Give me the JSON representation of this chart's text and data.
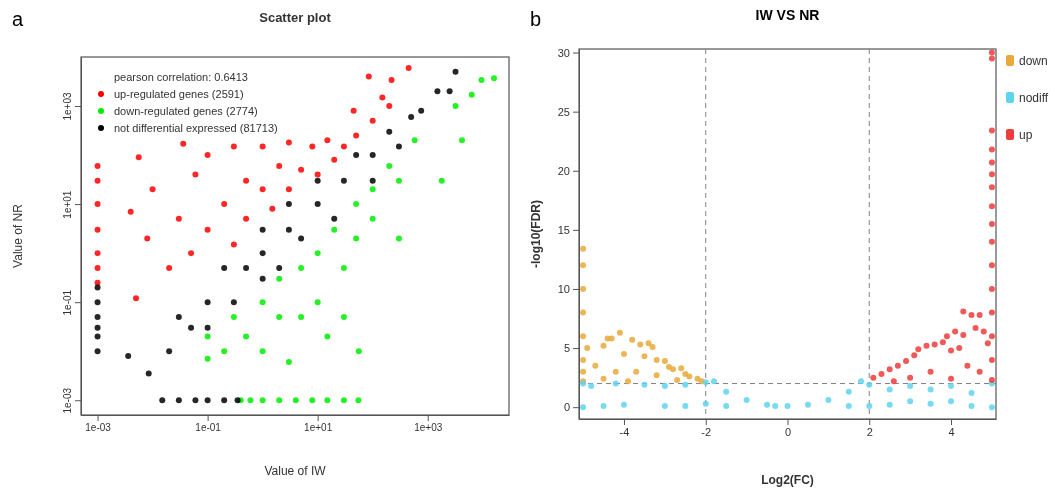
{
  "chart_data": [
    {
      "type": "scatter",
      "title": "Scatter plot",
      "xlabel": "Value of IW",
      "ylabel": "Value of NR",
      "annotations": [
        "a",
        "pearson correlation: 0.6413"
      ],
      "log": "xy",
      "xlim": [
        0.0005,
        30000
      ],
      "ylim": [
        0.0005,
        10000
      ],
      "xticks": [
        {
          "value": 0.001,
          "label": "1e-03"
        },
        {
          "value": 0.1,
          "label": "1e-01"
        },
        {
          "value": 10,
          "label": "1e+01"
        },
        {
          "value": 1000,
          "label": "1e+03"
        }
      ],
      "yticks": [
        {
          "value": 0.001,
          "label": "1e-03"
        },
        {
          "value": 0.1,
          "label": "1e-01"
        },
        {
          "value": 10,
          "label": "1e+01"
        },
        {
          "value": 1000,
          "label": "1e+03"
        }
      ],
      "grid": false,
      "legend": "top left",
      "marker": "circle",
      "series": [
        {
          "name": "up-regulated genes (2591)",
          "color": "#ff0000",
          "x": [
            0.001,
            0.001,
            0.001,
            0.001,
            0.001,
            0.001,
            0.001,
            0.004,
            0.0056,
            0.005,
            0.008,
            0.01,
            0.02,
            0.036,
            0.03,
            0.05,
            0.06,
            0.1,
            0.1,
            0.2,
            0.3,
            0.3,
            0.5,
            0.5,
            1,
            1,
            1.5,
            2,
            3,
            3,
            5,
            8,
            10,
            15,
            20,
            30,
            45,
            50,
            85,
            100,
            150,
            220,
            200,
            450
          ],
          "values": [
            60,
            30,
            10,
            3,
            1,
            0.5,
            0.25,
            7,
            90,
            0.12,
            2,
            20,
            0.5,
            170,
            5,
            1,
            40,
            3,
            100,
            10,
            1.5,
            150,
            30,
            5,
            150,
            20,
            8,
            60,
            180,
            20,
            50,
            150,
            40,
            200,
            80,
            150,
            800,
            250,
            4000,
            500,
            1500,
            3400,
            1000,
            6000
          ]
        },
        {
          "name": "down-regulated genes (2774)",
          "color": "#00ee00",
          "x": [
            0.4,
            0.6,
            1,
            2,
            4,
            8,
            15,
            30,
            55,
            0.1,
            0.1,
            0.2,
            0.3,
            0.5,
            1,
            1,
            2,
            2,
            3,
            5,
            5,
            10,
            10,
            15,
            20,
            30,
            30,
            50,
            50,
            56,
            100,
            100,
            200,
            300,
            300,
            580,
            1800,
            3200,
            4200,
            6300,
            9500,
            16000
          ],
          "values": [
            0.001,
            0.001,
            0.001,
            0.001,
            0.001,
            0.001,
            0.001,
            0.001,
            0.001,
            0.007,
            0.02,
            0.01,
            0.05,
            0.02,
            0.01,
            0.1,
            0.05,
            0.3,
            0.006,
            0.5,
            0.05,
            0.1,
            1,
            0.02,
            3,
            0.5,
            0.05,
            2,
            10,
            0.01,
            20,
            5,
            60,
            30,
            2,
            200,
            30,
            1000,
            200,
            1700,
            3400,
            3700
          ]
        },
        {
          "name": "not differential expressed (81713)",
          "color": "#000000",
          "x": [
            0.001,
            0.001,
            0.001,
            0.001,
            0.001,
            0.001,
            0.015,
            0.03,
            0.06,
            0.1,
            0.2,
            0.35,
            0.0036,
            0.0085,
            0.02,
            0.03,
            0.05,
            0.1,
            0.1,
            0.2,
            0.3,
            0.5,
            1,
            1,
            1,
            2,
            3,
            3,
            5,
            10,
            10,
            20,
            30,
            50,
            100,
            100,
            200,
            300,
            500,
            760,
            1500,
            2500,
            3200
          ],
          "values": [
            0.2,
            0.1,
            0.05,
            0.03,
            0.02,
            0.01,
            0.001,
            0.001,
            0.001,
            0.001,
            0.001,
            0.001,
            0.008,
            0.0035,
            0.01,
            0.05,
            0.03,
            0.1,
            0.03,
            0.5,
            0.1,
            0.5,
            1,
            3,
            0.3,
            0.5,
            3,
            10,
            2,
            10,
            30,
            5,
            30,
            100,
            100,
            30,
            300,
            150,
            600,
            800,
            2000,
            2000,
            5000
          ]
        }
      ]
    },
    {
      "type": "scatter",
      "title": "IW VS NR",
      "xlabel": "Log2(FC)",
      "ylabel": "-log10(FDR)",
      "annotations": [
        "b"
      ],
      "xlim": [
        -5.1,
        5.1
      ],
      "ylim": [
        -1,
        30.3
      ],
      "xticks": [
        -4,
        -2,
        0,
        2,
        4
      ],
      "yticks": [
        0,
        5,
        10,
        15,
        20,
        25,
        30
      ],
      "grid": false,
      "legend": "right",
      "marker": "circle",
      "ref_lines": [
        {
          "axis": "x",
          "value": -2,
          "line_style": "dashed",
          "color": "#808080"
        },
        {
          "axis": "x",
          "value": 2,
          "line_style": "dashed",
          "color": "#808080"
        },
        {
          "axis": "y",
          "value": 2,
          "line_style": "dashed",
          "color": "#808080"
        }
      ],
      "series": [
        {
          "name": "down",
          "color": "#e8a93a",
          "x": [
            -5,
            -5,
            -5,
            -5,
            -5,
            -5,
            -5,
            -5,
            -4.9,
            -4.5,
            -4.4,
            -4.3,
            -4.1,
            -3.8,
            -3.6,
            -3.4,
            -3.3,
            -4,
            -3.5,
            -3.2,
            -3,
            -2.9,
            -2.8,
            -2.6,
            -2.5,
            -2.4,
            -2.2,
            -2.1,
            -4.7,
            -4.2,
            -3.7,
            -3.2,
            -2.7,
            -4.5,
            -3.9
          ],
          "values": [
            13.4,
            12,
            10,
            8,
            6,
            4,
            3,
            2.2,
            5,
            5.2,
            5.8,
            5.8,
            6.3,
            5.7,
            5.3,
            5.4,
            5.1,
            4.5,
            4.3,
            4,
            3.9,
            3.4,
            3.2,
            3.3,
            2.8,
            2.6,
            2.4,
            2.2,
            3.5,
            3,
            3,
            2.7,
            2.3,
            2.4,
            2.2
          ]
        },
        {
          "name": "nodiff",
          "color": "#5dd4f0",
          "x": [
            -5,
            -5,
            -4.8,
            -4.5,
            -4.2,
            -4,
            -3.5,
            -3,
            -3,
            -2.5,
            -2.5,
            -2,
            -2,
            -1.8,
            -1.5,
            -1.5,
            -1,
            -0.5,
            -0.3,
            0,
            0.5,
            1,
            1.5,
            1.5,
            1.8,
            2,
            2,
            2.5,
            2.5,
            3,
            3,
            3.5,
            3.5,
            4,
            4,
            4.5,
            4.5,
            5,
            5
          ],
          "values": [
            2,
            0,
            1.8,
            0.1,
            2,
            0.2,
            1.9,
            1.8,
            0.1,
            1.9,
            0.1,
            2.1,
            0.3,
            2.2,
            1.3,
            0.1,
            0.6,
            0.2,
            0.1,
            0.1,
            0.2,
            0.6,
            1.3,
            0.1,
            2.2,
            1.9,
            0.1,
            1.5,
            0.2,
            1.8,
            0.5,
            1.5,
            0.3,
            1.8,
            0.5,
            1.2,
            0.1,
            2,
            0
          ]
        },
        {
          "name": "up",
          "color": "#ee3b3b",
          "x": [
            5,
            5,
            5,
            5,
            5,
            5,
            5,
            5,
            5,
            5,
            5,
            5,
            5,
            5,
            5,
            5,
            2.1,
            2.3,
            2.5,
            2.7,
            2.9,
            3.1,
            3.2,
            3.4,
            3.6,
            3.8,
            3.9,
            4,
            4.1,
            4.2,
            4.3,
            4.3,
            4.5,
            4.6,
            4.7,
            4.8,
            4.9,
            3.5,
            4.4,
            3,
            4,
            2.6,
            4.7
          ],
          "values": [
            30,
            29.5,
            23.4,
            21.8,
            20.7,
            19.7,
            18.6,
            17,
            15.5,
            14,
            12,
            10,
            8,
            6,
            4,
            2.3,
            2.5,
            2.8,
            3.2,
            3.5,
            3.9,
            4.4,
            4.9,
            5.2,
            5.3,
            5.5,
            6,
            4.8,
            6.4,
            5,
            8.1,
            6.1,
            7.8,
            6.7,
            7.8,
            6.4,
            5.4,
            3,
            3.5,
            2.5,
            2.4,
            2.2,
            3
          ]
        }
      ]
    }
  ]
}
